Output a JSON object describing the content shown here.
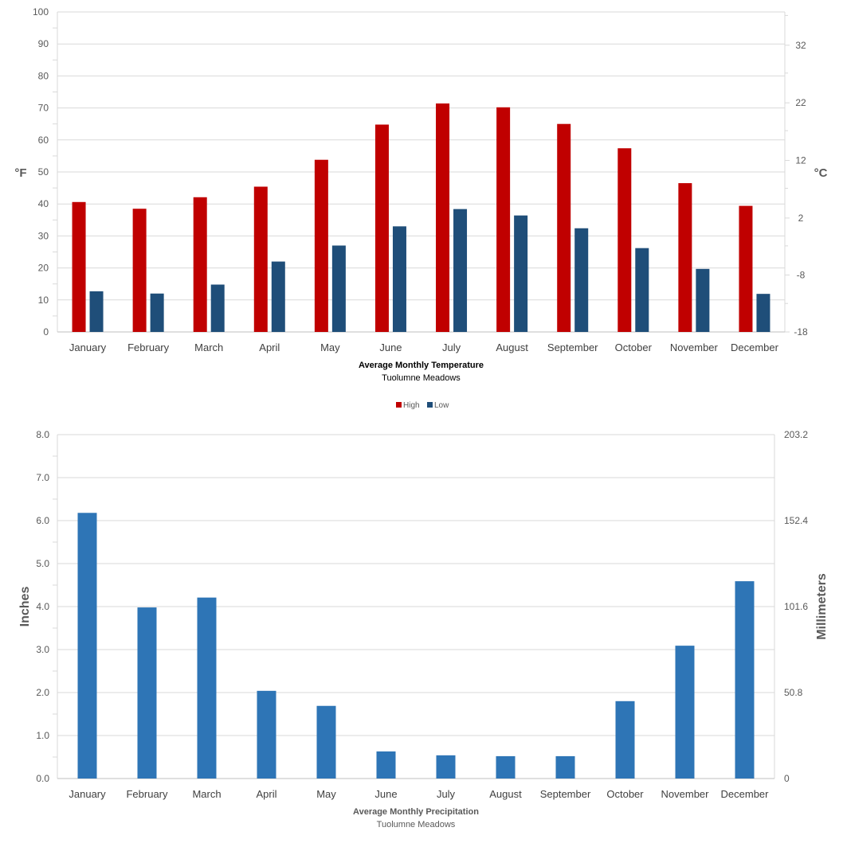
{
  "chart_data": [
    {
      "type": "bar",
      "title": "Average Monthly Temperature",
      "subtitle": "Tuolumne Meadows",
      "ylabel": "°F",
      "y2label": "°C",
      "ylim": [
        0,
        100
      ],
      "yticks": [
        "0",
        "10",
        "20",
        "30",
        "40",
        "50",
        "60",
        "70",
        "80",
        "90",
        "100"
      ],
      "y2ticks": [
        "-18",
        "-8",
        "2",
        "12",
        "22",
        "32"
      ],
      "y2_tick_fvalues": [
        0,
        17.8,
        35.6,
        53.6,
        71.6,
        89.6
      ],
      "grid": true,
      "legend_position": "bottom-center",
      "categories": [
        "January",
        "February",
        "March",
        "April",
        "May",
        "June",
        "July",
        "August",
        "September",
        "October",
        "November",
        "December"
      ],
      "series": [
        {
          "name": "High",
          "color": "#C00000",
          "values": [
            40.6,
            38.5,
            42.1,
            45.4,
            53.8,
            64.8,
            71.4,
            70.2,
            65.0,
            57.4,
            46.5,
            39.4
          ]
        },
        {
          "name": "Low",
          "color": "#1F4E79",
          "values": [
            12.7,
            12.0,
            14.8,
            22.0,
            27.0,
            33.0,
            38.4,
            36.4,
            32.4,
            26.2,
            19.7,
            11.9
          ]
        }
      ]
    },
    {
      "type": "bar",
      "title": "Average Monthly Precipitation",
      "subtitle": "Tuolumne Meadows",
      "ylabel": "Inches",
      "y2label": "Millimeters",
      "ylim": [
        0,
        8
      ],
      "yticks": [
        "0.0",
        "1.0",
        "2.0",
        "3.0",
        "4.0",
        "5.0",
        "6.0",
        "7.0",
        "8.0"
      ],
      "y2ticks": [
        "0",
        "50.8",
        "101.6",
        "152.4",
        "203.2"
      ],
      "y2_tick_values": [
        0,
        2,
        4,
        6,
        8
      ],
      "grid": true,
      "categories": [
        "January",
        "February",
        "March",
        "April",
        "May",
        "June",
        "July",
        "August",
        "September",
        "October",
        "November",
        "December"
      ],
      "series": [
        {
          "name": "Precipitation",
          "color": "#2E75B6",
          "values": [
            6.18,
            3.98,
            4.21,
            2.04,
            1.69,
            0.63,
            0.54,
            0.52,
            0.52,
            1.8,
            3.09,
            4.59
          ]
        }
      ]
    }
  ]
}
